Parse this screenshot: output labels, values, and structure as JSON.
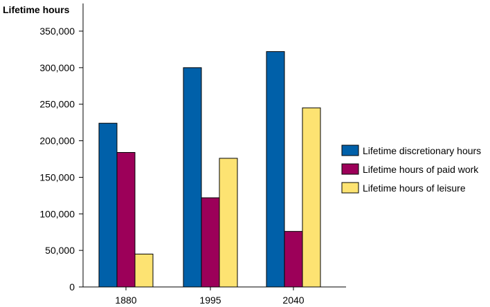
{
  "chart_data": {
    "type": "bar",
    "title": "",
    "xlabel": "",
    "ylabel": "Lifetime hours",
    "ylim": [
      0,
      350000
    ],
    "yticks": [
      0,
      50000,
      100000,
      150000,
      200000,
      250000,
      300000,
      350000
    ],
    "ytick_labels": [
      "0",
      "50,000",
      "100,000",
      "150,000",
      "200,000",
      "250,000",
      "300,000",
      "350,000"
    ],
    "categories": [
      "1880",
      "1995",
      "2040"
    ],
    "series": [
      {
        "name": "Lifetime discretionary hours",
        "color": "#0060a9",
        "values": [
          224000,
          300000,
          322000
        ]
      },
      {
        "name": "Lifetime hours of paid work",
        "color": "#9c0059",
        "values": [
          184000,
          122000,
          76000
        ]
      },
      {
        "name": "Lifetime hours of leisure",
        "color": "#fde372",
        "values": [
          45000,
          176000,
          245000
        ]
      }
    ],
    "grid": false,
    "legend_position": "right"
  }
}
